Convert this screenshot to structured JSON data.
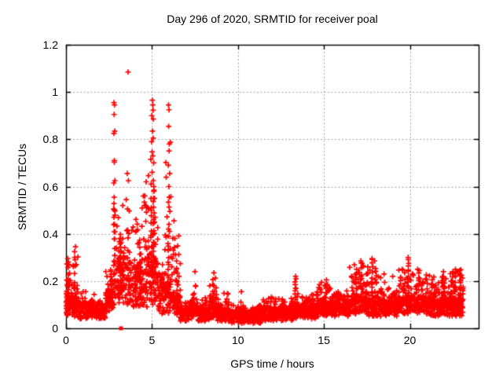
{
  "chart_data": {
    "type": "scatter",
    "title": "Day 296 of 2020, SRMTID for receiver poal",
    "xlabel": "GPS time / hours",
    "ylabel": "SRMTID / TECUs",
    "xlim": [
      0,
      24
    ],
    "ylim": [
      0,
      1.2
    ],
    "x_ticks": [
      {
        "v": 0,
        "label": "0"
      },
      {
        "v": 5,
        "label": "5"
      },
      {
        "v": 10,
        "label": "10"
      },
      {
        "v": 15,
        "label": "15"
      },
      {
        "v": 20,
        "label": "20"
      }
    ],
    "y_ticks": [
      {
        "v": 0,
        "label": "0"
      },
      {
        "v": 0.2,
        "label": "0.2"
      },
      {
        "v": 0.4,
        "label": "0.4"
      },
      {
        "v": 0.6,
        "label": "0.6"
      },
      {
        "v": 0.8,
        "label": "0.8"
      },
      {
        "v": 1,
        "label": "1"
      },
      {
        "v": 1.2,
        "label": "1.2"
      }
    ],
    "grid": true,
    "legend": false,
    "marker": "plus",
    "marker_color": "#ff0000",
    "grid_color": "#a0a0a0",
    "axis_color": "#000000",
    "x_data_range": [
      0,
      23.1
    ],
    "special_marker": {
      "type": "filled-square",
      "x": 3.2,
      "y": 0,
      "color": "#ff0000"
    },
    "band_format": [
      "x_start",
      "x_end",
      "n_points",
      "y_min",
      "y_typical",
      "y_max",
      "tail_exponent"
    ],
    "density_bands": [
      [
        0.0,
        0.25,
        40,
        0.05,
        0.16,
        0.3,
        4
      ],
      [
        0.25,
        0.7,
        60,
        0.05,
        0.14,
        0.34,
        5
      ],
      [
        0.7,
        1.15,
        55,
        0.04,
        0.11,
        0.18,
        4
      ],
      [
        1.15,
        1.65,
        70,
        0.04,
        0.1,
        0.15,
        4
      ],
      [
        1.65,
        2.3,
        90,
        0.04,
        0.09,
        0.14,
        4
      ],
      [
        2.3,
        2.75,
        60,
        0.06,
        0.16,
        0.26,
        4
      ],
      [
        2.75,
        2.95,
        22,
        0.08,
        0.25,
        0.9,
        2.5
      ],
      [
        2.95,
        3.45,
        65,
        0.1,
        0.27,
        0.5,
        4
      ],
      [
        3.45,
        3.75,
        40,
        0.1,
        0.28,
        0.62,
        4
      ],
      [
        3.75,
        4.35,
        80,
        0.08,
        0.24,
        0.55,
        4.5
      ],
      [
        4.35,
        4.75,
        55,
        0.08,
        0.22,
        0.62,
        4
      ],
      [
        4.75,
        5.35,
        85,
        0.1,
        0.32,
        0.95,
        7
      ],
      [
        5.35,
        5.75,
        50,
        0.06,
        0.18,
        0.32,
        4
      ],
      [
        5.75,
        6.15,
        48,
        0.06,
        0.2,
        0.9,
        6
      ],
      [
        6.15,
        6.65,
        60,
        0.05,
        0.14,
        0.42,
        5
      ],
      [
        6.65,
        7.35,
        90,
        0.03,
        0.08,
        0.13,
        4
      ],
      [
        7.35,
        7.65,
        40,
        0.04,
        0.1,
        0.24,
        4
      ],
      [
        7.65,
        8.35,
        85,
        0.03,
        0.08,
        0.14,
        4
      ],
      [
        8.35,
        8.75,
        55,
        0.04,
        0.11,
        0.23,
        4
      ],
      [
        8.75,
        9.5,
        95,
        0.03,
        0.08,
        0.16,
        4
      ],
      [
        9.5,
        11.4,
        235,
        0.02,
        0.07,
        0.12,
        4
      ],
      [
        11.4,
        13.2,
        225,
        0.03,
        0.08,
        0.14,
        4
      ],
      [
        13.2,
        13.5,
        40,
        0.04,
        0.1,
        0.22,
        4
      ],
      [
        13.5,
        14.6,
        135,
        0.04,
        0.1,
        0.17,
        4
      ],
      [
        14.6,
        15.35,
        95,
        0.05,
        0.11,
        0.21,
        4
      ],
      [
        15.35,
        16.5,
        140,
        0.05,
        0.11,
        0.18,
        4
      ],
      [
        16.5,
        17.55,
        130,
        0.06,
        0.13,
        0.28,
        4
      ],
      [
        17.55,
        18.25,
        88,
        0.05,
        0.12,
        0.3,
        4.5
      ],
      [
        18.25,
        19.3,
        130,
        0.05,
        0.11,
        0.23,
        4
      ],
      [
        19.3,
        20.15,
        108,
        0.06,
        0.13,
        0.3,
        4.5
      ],
      [
        20.15,
        21.1,
        118,
        0.06,
        0.13,
        0.25,
        4
      ],
      [
        21.1,
        22.25,
        142,
        0.05,
        0.11,
        0.24,
        4
      ],
      [
        22.25,
        23.1,
        125,
        0.05,
        0.12,
        0.26,
        4
      ]
    ],
    "spike_columns": [
      {
        "x": 0.12,
        "y0": 0.06,
        "y1": 0.28,
        "n": 10
      },
      {
        "x": 0.52,
        "y0": 0.08,
        "y1": 0.32,
        "n": 9
      },
      {
        "x": 2.62,
        "y0": 0.1,
        "y1": 0.245,
        "n": 10
      },
      {
        "x": 2.82,
        "y0": 0.1,
        "y1": 0.48,
        "n": 12
      },
      {
        "x": 3.18,
        "y0": 0.15,
        "y1": 0.4,
        "n": 14
      },
      {
        "x": 4.3,
        "y0": 0.1,
        "y1": 0.38,
        "n": 10
      },
      {
        "x": 4.95,
        "y0": 0.12,
        "y1": 0.55,
        "n": 14
      },
      {
        "x": 5.1,
        "y0": 0.12,
        "y1": 0.6,
        "n": 22
      },
      {
        "x": 5.95,
        "y0": 0.1,
        "y1": 0.42,
        "n": 12
      },
      {
        "x": 6.45,
        "y0": 0.08,
        "y1": 0.28,
        "n": 9
      },
      {
        "x": 8.55,
        "y0": 0.06,
        "y1": 0.2,
        "n": 8
      },
      {
        "x": 13.33,
        "y0": 0.05,
        "y1": 0.2,
        "n": 8
      },
      {
        "x": 15.12,
        "y0": 0.06,
        "y1": 0.19,
        "n": 7
      },
      {
        "x": 16.88,
        "y0": 0.07,
        "y1": 0.235,
        "n": 8
      },
      {
        "x": 17.18,
        "y0": 0.08,
        "y1": 0.27,
        "n": 10
      },
      {
        "x": 17.82,
        "y0": 0.08,
        "y1": 0.285,
        "n": 10
      },
      {
        "x": 19.9,
        "y0": 0.09,
        "y1": 0.285,
        "n": 10
      },
      {
        "x": 20.5,
        "y0": 0.08,
        "y1": 0.235,
        "n": 9
      },
      {
        "x": 21.3,
        "y0": 0.06,
        "y1": 0.19,
        "n": 7
      },
      {
        "x": 21.95,
        "y0": 0.07,
        "y1": 0.225,
        "n": 8
      },
      {
        "x": 22.65,
        "y0": 0.07,
        "y1": 0.235,
        "n": 9
      },
      {
        "x": 22.92,
        "y0": 0.06,
        "y1": 0.23,
        "n": 9
      }
    ],
    "notable_points": [
      [
        0.1,
        0.295
      ],
      [
        0.18,
        0.27
      ],
      [
        0.55,
        0.345
      ],
      [
        0.5,
        0.3
      ],
      [
        0.6,
        0.27
      ],
      [
        1.0,
        0.155
      ],
      [
        2.79,
        0.955
      ],
      [
        2.82,
        0.945
      ],
      [
        2.8,
        0.905
      ],
      [
        2.83,
        0.835
      ],
      [
        2.79,
        0.825
      ],
      [
        2.81,
        0.71
      ],
      [
        2.84,
        0.625
      ],
      [
        2.78,
        0.615
      ],
      [
        2.8,
        0.555
      ],
      [
        2.82,
        0.5
      ],
      [
        3.61,
        1.085
      ],
      [
        3.56,
        0.655
      ],
      [
        3.63,
        0.625
      ],
      [
        3.5,
        0.545
      ],
      [
        3.3,
        0.52
      ],
      [
        4.5,
        0.56
      ],
      [
        4.58,
        0.52
      ],
      [
        4.66,
        0.62
      ],
      [
        5.02,
        0.965
      ],
      [
        5.05,
        0.945
      ],
      [
        4.99,
        0.9
      ],
      [
        5.03,
        0.835
      ],
      [
        5.07,
        0.805
      ],
      [
        4.98,
        0.79
      ],
      [
        5.05,
        0.73
      ],
      [
        5.1,
        0.7
      ],
      [
        5.01,
        0.66
      ],
      [
        5.08,
        0.625
      ],
      [
        5.12,
        0.585
      ],
      [
        5.15,
        0.55
      ],
      [
        4.95,
        0.5
      ],
      [
        5.18,
        0.47
      ],
      [
        5.96,
        0.945
      ],
      [
        5.99,
        0.925
      ],
      [
        5.97,
        0.855
      ],
      [
        6.01,
        0.78
      ],
      [
        5.95,
        0.69
      ],
      [
        6.03,
        0.655
      ],
      [
        5.98,
        0.6
      ],
      [
        6.0,
        0.555
      ],
      [
        6.04,
        0.495
      ],
      [
        5.99,
        0.44
      ],
      [
        6.02,
        0.41
      ],
      [
        6.28,
        0.455
      ],
      [
        6.33,
        0.38
      ],
      [
        6.25,
        0.33
      ],
      [
        7.5,
        0.24
      ],
      [
        8.6,
        0.235
      ],
      [
        10.2,
        0.155
      ],
      [
        13.35,
        0.22
      ],
      [
        13.38,
        0.21
      ],
      [
        14.75,
        0.185
      ],
      [
        15.15,
        0.205
      ],
      [
        16.6,
        0.22
      ],
      [
        16.9,
        0.25
      ],
      [
        17.15,
        0.285
      ],
      [
        17.22,
        0.275
      ],
      [
        17.3,
        0.265
      ],
      [
        17.55,
        0.26
      ],
      [
        17.8,
        0.295
      ],
      [
        17.95,
        0.285
      ],
      [
        18.5,
        0.23
      ],
      [
        19.0,
        0.22
      ],
      [
        19.55,
        0.25
      ],
      [
        19.9,
        0.3
      ],
      [
        19.93,
        0.275
      ],
      [
        20.45,
        0.25
      ],
      [
        20.55,
        0.245
      ],
      [
        21.3,
        0.205
      ],
      [
        21.95,
        0.24
      ],
      [
        22.1,
        0.21
      ],
      [
        22.5,
        0.24
      ],
      [
        22.65,
        0.25
      ],
      [
        22.9,
        0.245
      ],
      [
        23.0,
        0.225
      ]
    ]
  }
}
